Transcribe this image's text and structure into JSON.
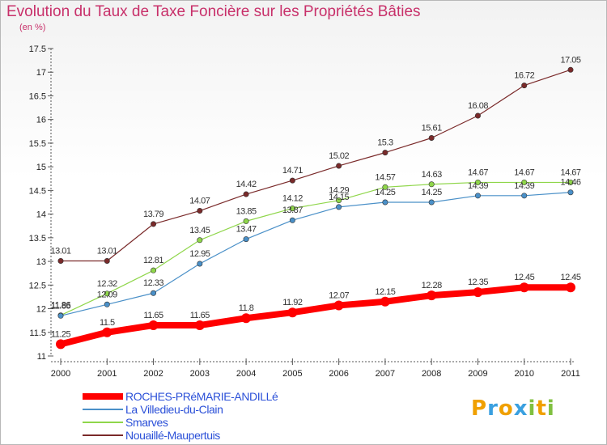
{
  "chart_data": {
    "type": "line",
    "title": "Evolution du Taux de Taxe Foncière sur les Propriétés Bâties",
    "unit_label": "(en %)",
    "x": [
      "2000",
      "2001",
      "2002",
      "2003",
      "2004",
      "2005",
      "2006",
      "2007",
      "2008",
      "2009",
      "2010",
      "2011"
    ],
    "ylim": [
      11,
      17.5
    ],
    "yticks": [
      "11",
      "11.5",
      "12",
      "12.5",
      "13",
      "13.5",
      "14",
      "14.5",
      "15",
      "15.5",
      "16",
      "16.5",
      "17",
      "17.5"
    ],
    "grid": false,
    "legend_position": "bottom-left",
    "series": [
      {
        "name": "ROCHES-PRéMARIE-ANDILLé",
        "color": "#ff0000",
        "values": [
          11.25,
          11.5,
          11.65,
          11.65,
          11.8,
          11.92,
          12.07,
          12.15,
          12.28,
          12.35,
          12.45,
          12.45
        ],
        "labels": [
          "11.25",
          "11.5",
          "11.65",
          "11.65",
          "11.8",
          "11.92",
          "12.07",
          "12.15",
          "12.28",
          "12.35",
          "12.45",
          "12.45"
        ]
      },
      {
        "name": "La Villedieu-du-Clain",
        "color": "#4a90c8",
        "values": [
          11.85,
          12.09,
          12.33,
          12.95,
          13.47,
          13.87,
          14.15,
          14.25,
          14.25,
          14.39,
          14.39,
          14.46
        ],
        "labels": [
          "11.85",
          "12.09",
          "12.33",
          "12.95",
          "13.47",
          "13.87",
          "14.15",
          "14.25",
          "14.25",
          "14.39",
          "14.39",
          "14.46"
        ]
      },
      {
        "name": "Smarves",
        "color": "#8fd64a",
        "values": [
          11.86,
          12.32,
          12.81,
          13.45,
          13.85,
          14.12,
          14.29,
          14.57,
          14.63,
          14.67,
          14.67,
          14.67
        ],
        "labels": [
          "11.86",
          "12.32",
          "12.81",
          "13.45",
          "13.85",
          "14.12",
          "14.29",
          "14.57",
          "14.63",
          "14.67",
          "14.67",
          "14.67"
        ]
      },
      {
        "name": "Nouaillé-Maupertuis",
        "color": "#7a2a2a",
        "values": [
          13.01,
          13.01,
          13.79,
          14.07,
          14.42,
          14.71,
          15.02,
          15.3,
          15.61,
          16.08,
          16.72,
          17.05
        ],
        "labels": [
          "13.01",
          "13.01",
          "13.79",
          "14.07",
          "14.42",
          "14.71",
          "15.02",
          "15.3",
          "15.61",
          "16.08",
          "16.72",
          "17.05"
        ]
      }
    ]
  },
  "logo": {
    "letters": [
      "P",
      "r",
      "o",
      "x",
      "i",
      "t",
      "i"
    ],
    "colors": [
      "#f0a000",
      "#3aa0e0",
      "#f0a000",
      "#3aa0e0",
      "#80c040",
      "#f0a000",
      "#80c040"
    ]
  }
}
